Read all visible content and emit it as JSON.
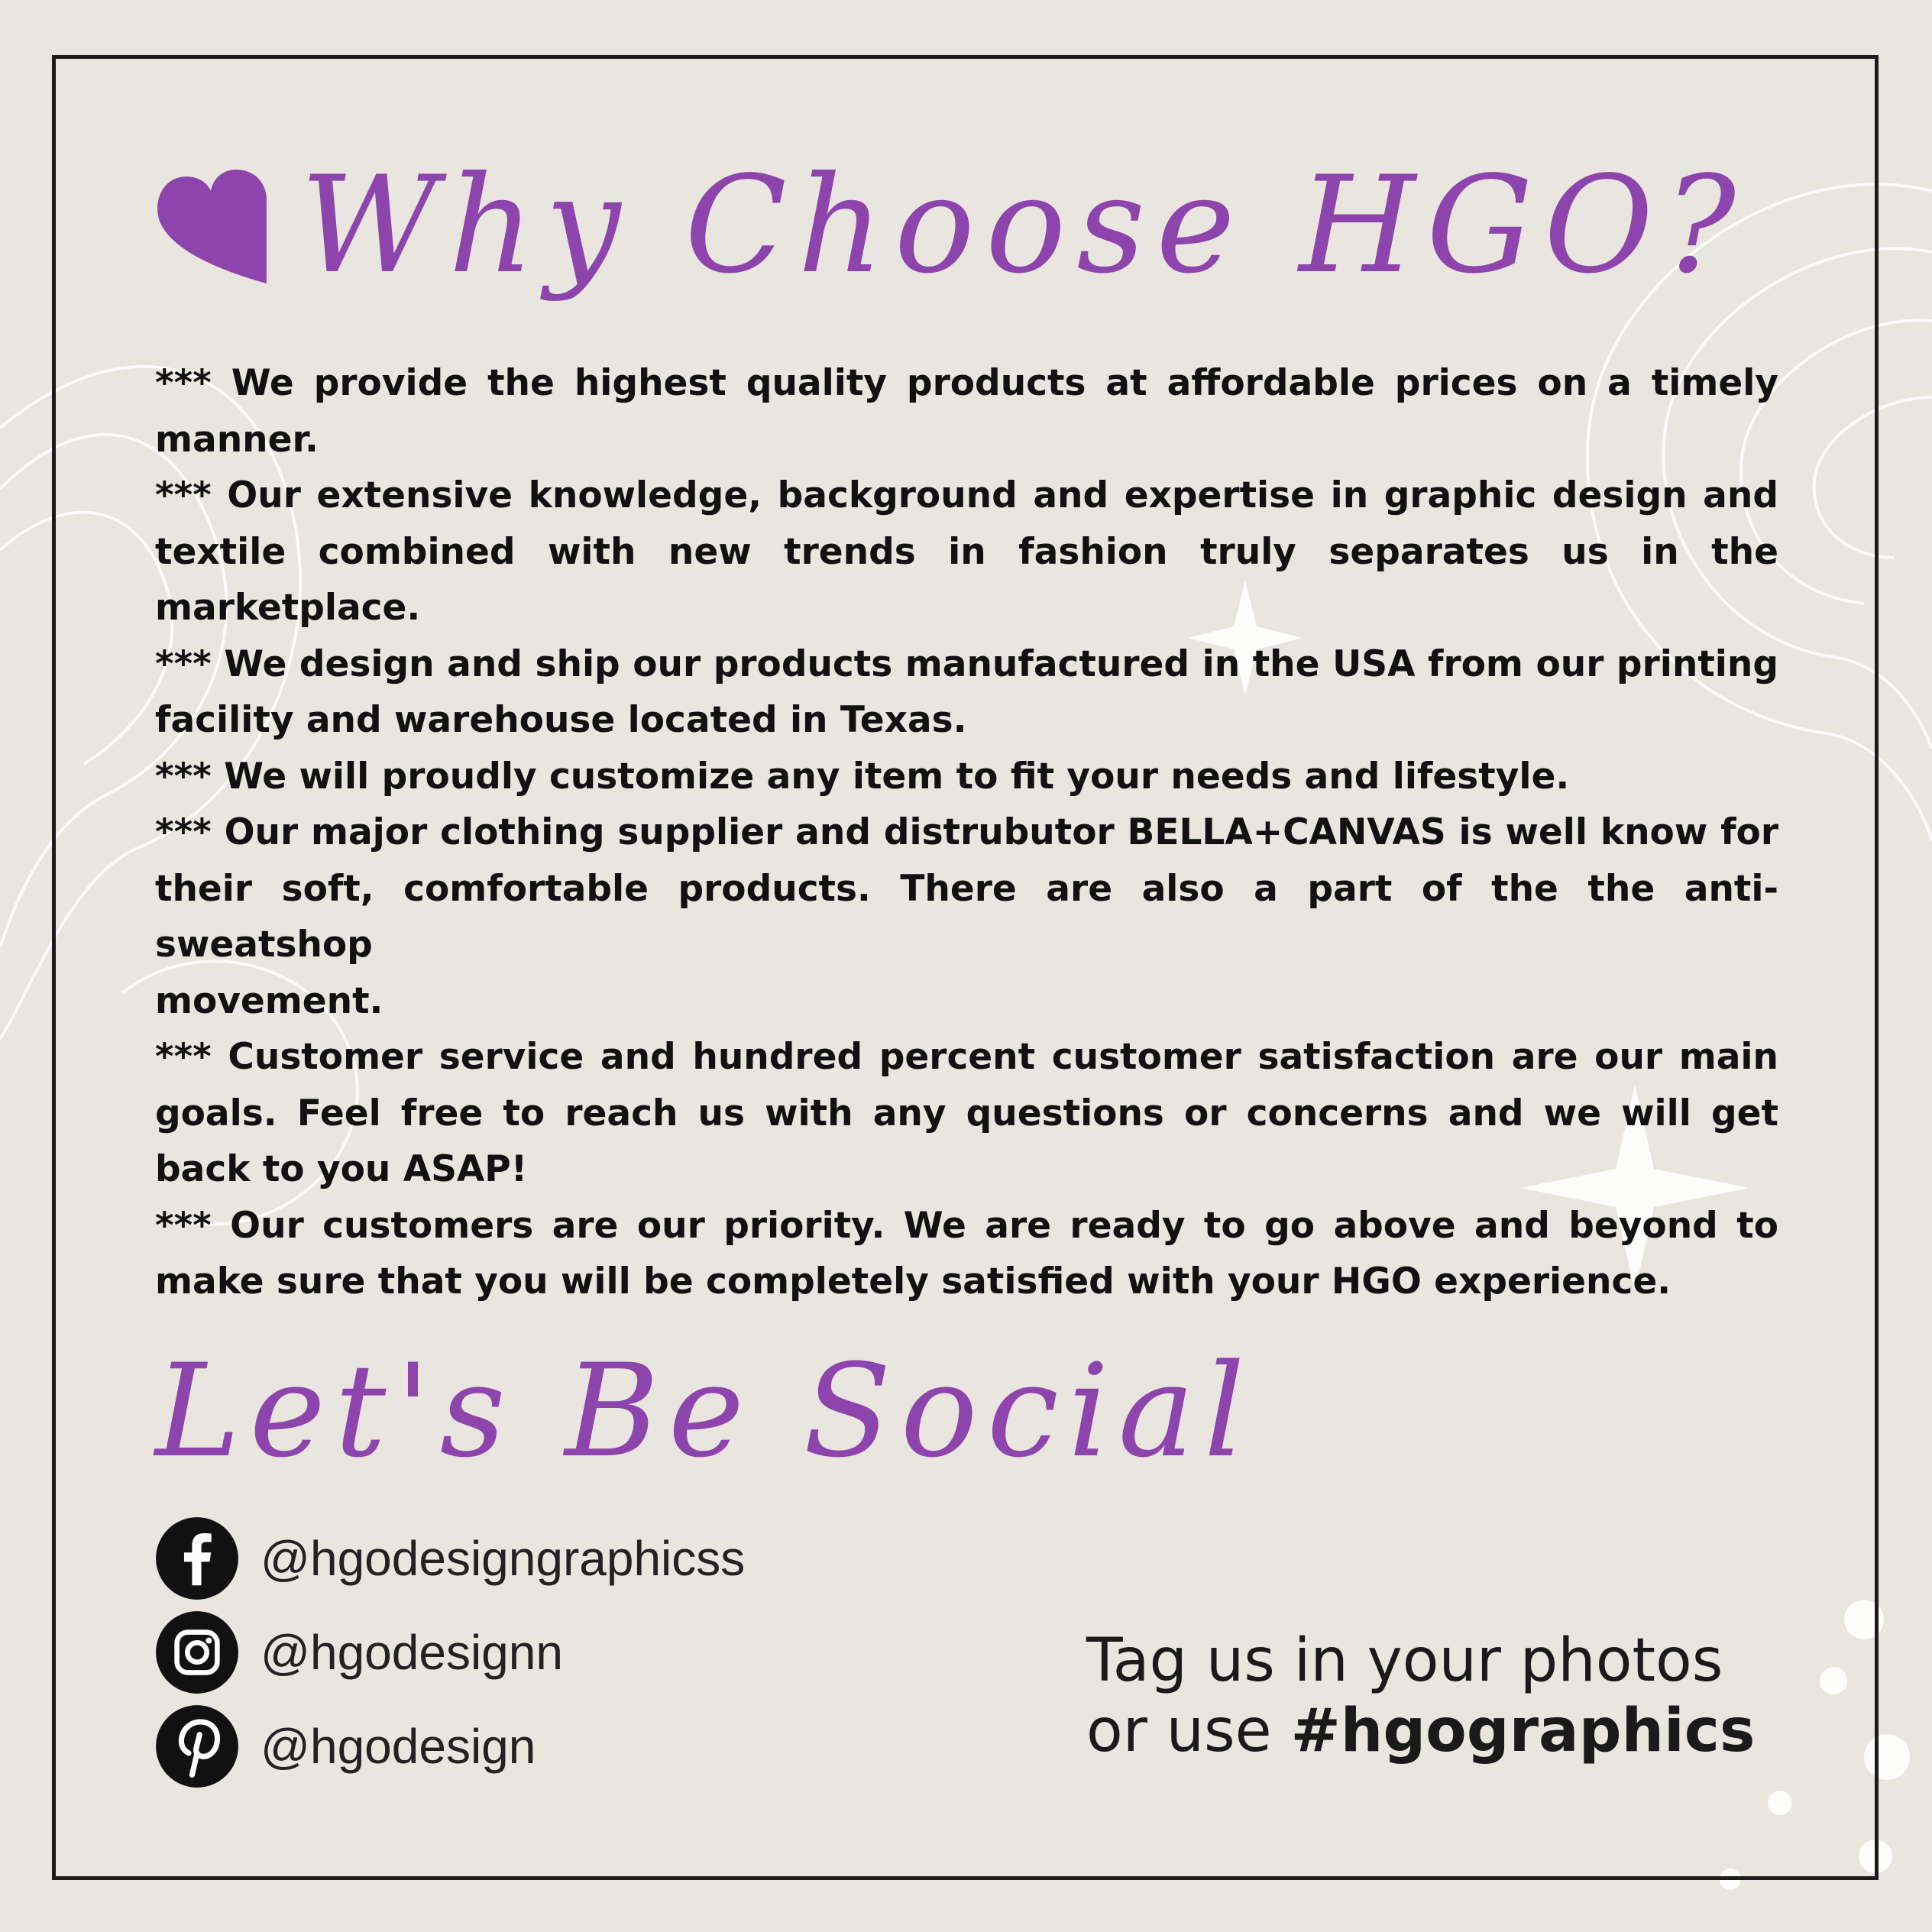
{
  "colors": {
    "background": "#e9e5df",
    "accent": "#8e44ad",
    "text": "#111111",
    "frame": "#1d1b1b"
  },
  "heading": {
    "icon": "heart-icon",
    "title": "Why Choose HGO?"
  },
  "paragraphs": [
    "*** We provide the highest quality products at affordable prices on a timely manner.",
    "*** Our extensive knowledge, background and expertise in graphic design and textile combined with new trends in fashion truly separates us in the marketplace.",
    "*** We design and ship our products manufactured in the USA from our printing facility and warehouse located in Texas.",
    "*** We will proudly customize any item to fit your needs and lifestyle.",
    "*** Our major clothing supplier and distrubutor BELLA+CANVAS is well know for their soft, comfortable products. There are also a part of the the anti-sweatshop",
    "movement.",
    "*** Customer service and hundred percent customer satisfaction are our main goals. Feel free to reach us with any questions or concerns and we will get back to you ASAP!",
    "*** Our customers are our priority. We are ready to go above and beyond to make sure that you will be completely satisfied with your HGO experience."
  ],
  "social": {
    "title": "Let's Be Social",
    "items": [
      {
        "icon": "facebook-icon",
        "handle": "@hgodesigngraphicss"
      },
      {
        "icon": "instagram-icon",
        "handle": "@hgodesignn"
      },
      {
        "icon": "pinterest-icon",
        "handle": "@hgodesign"
      }
    ]
  },
  "tag": {
    "line1": "Tag us in your photos",
    "line2_prefix": "or use ",
    "hashtag": "#hgographics"
  }
}
